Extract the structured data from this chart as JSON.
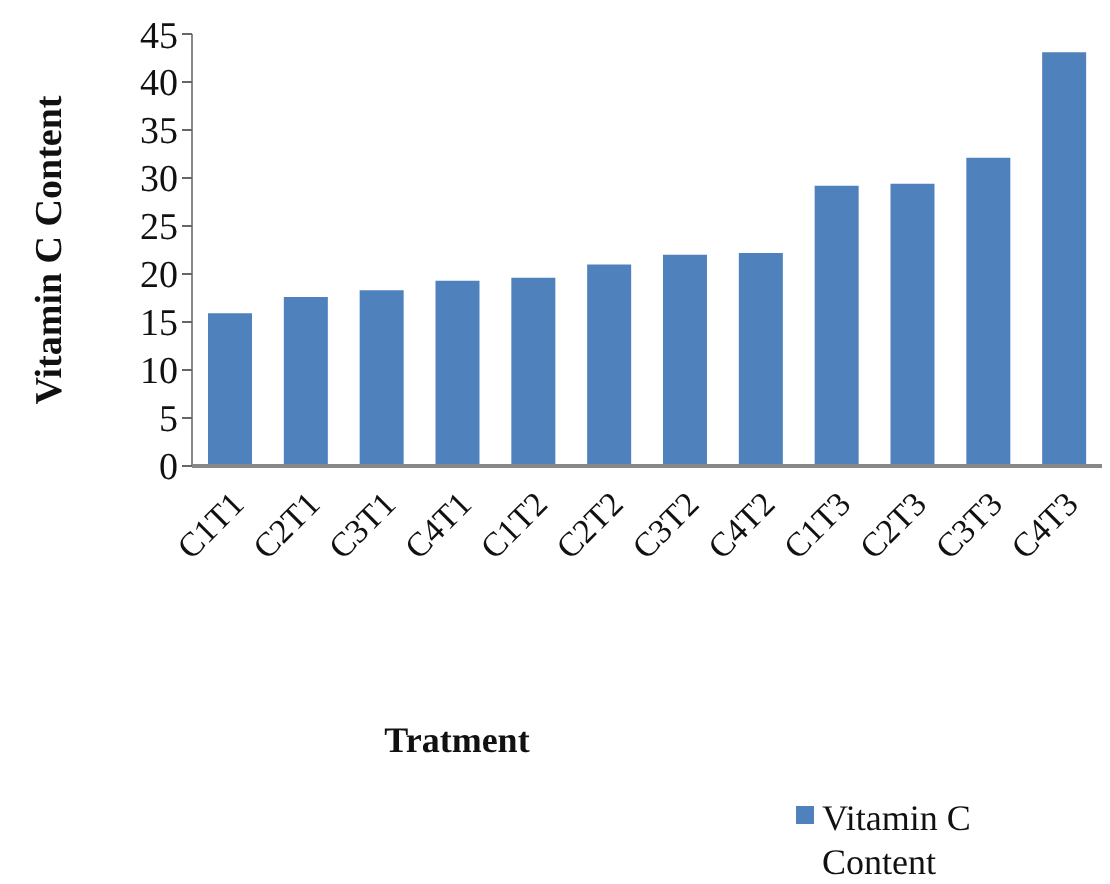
{
  "chart_data": {
    "type": "bar",
    "xlabel": "Tratment",
    "ylabel": "Vitamin C Content",
    "categories": [
      "C1T1",
      "C2T1",
      "C3T1",
      "C4T1",
      "C1T2",
      "C2T2",
      "C3T2",
      "C4T2",
      "C1T3",
      "C2T3",
      "C3T3",
      "C4T3"
    ],
    "series": [
      {
        "name": "Vitamin C Content",
        "color": "#4f81bd",
        "values": [
          15.9,
          17.6,
          18.3,
          19.3,
          19.6,
          21.0,
          22.0,
          22.2,
          29.2,
          29.4,
          32.1,
          43.1
        ]
      }
    ],
    "ylim": [
      0,
      45
    ],
    "yticks": [
      0,
      5,
      10,
      15,
      20,
      25,
      30,
      35,
      40,
      45
    ],
    "grid": false,
    "legend": "bottom right"
  }
}
